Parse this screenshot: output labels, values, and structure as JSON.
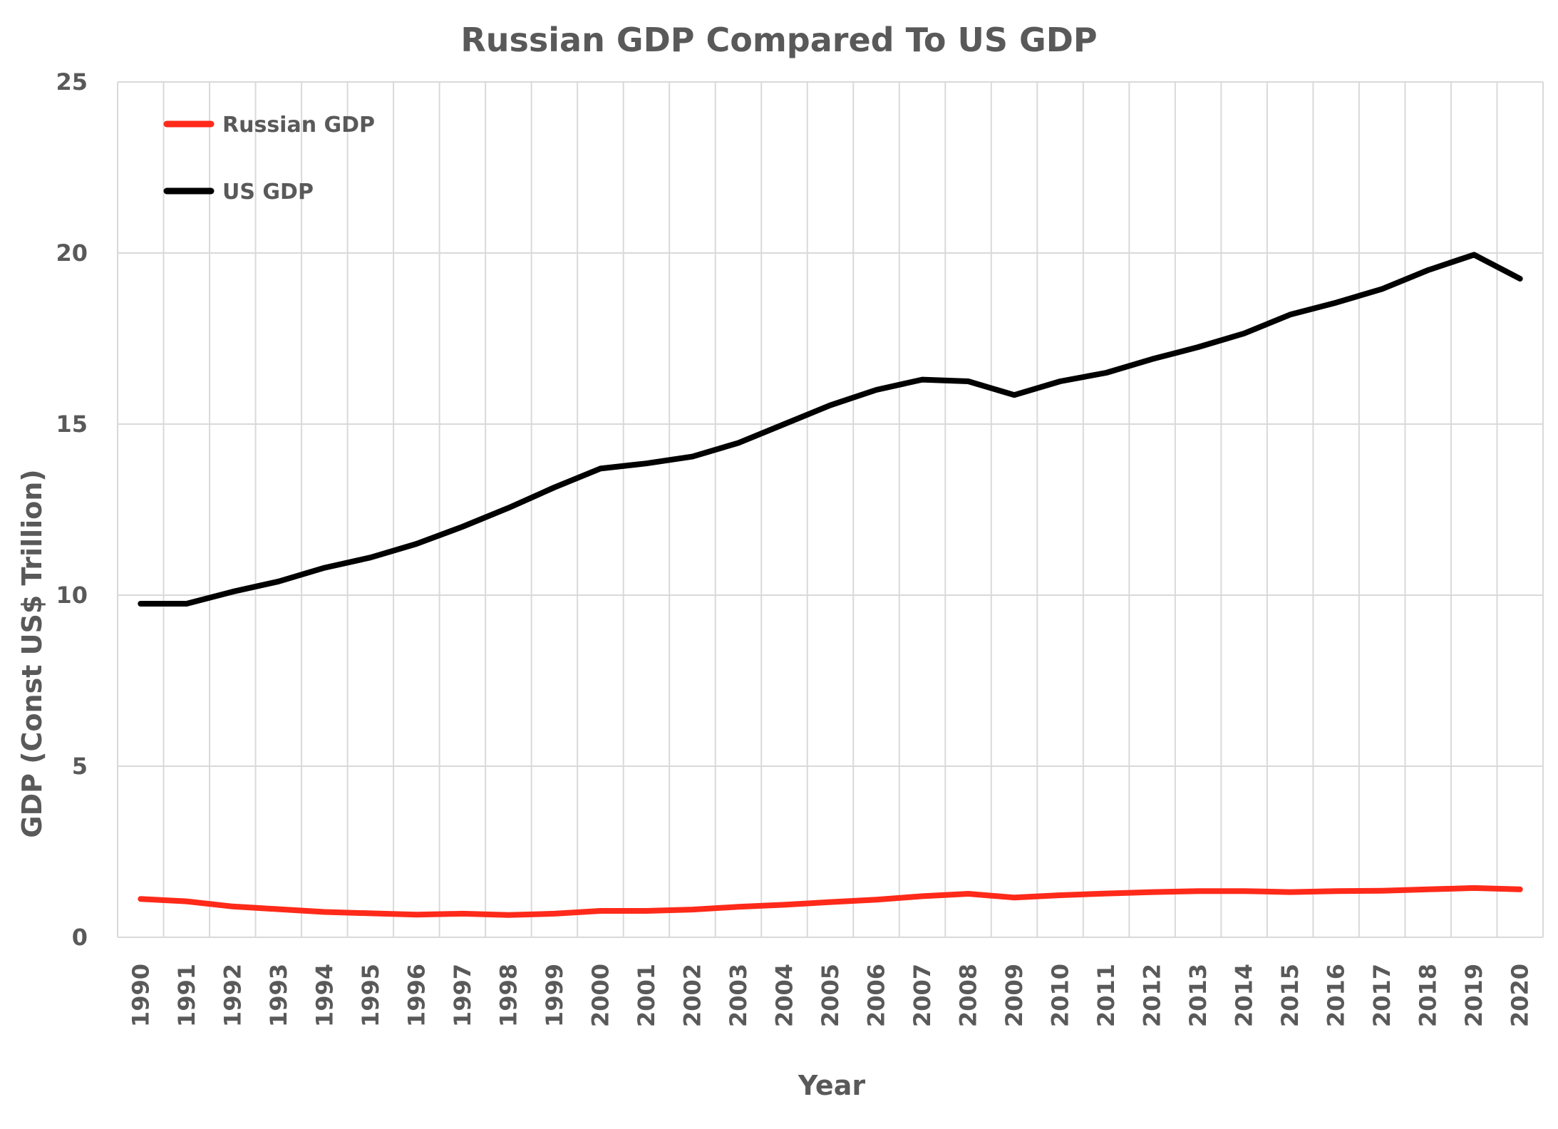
{
  "chart_data": {
    "type": "line",
    "title": "Russian GDP Compared To US GDP",
    "xlabel": "Year",
    "ylabel": "GDP (Const US$ Trillion)",
    "ylim": [
      0,
      25
    ],
    "yticks": [
      "0",
      "5",
      "10",
      "15",
      "20",
      "25"
    ],
    "grid": true,
    "legend_position": "top-left",
    "categories": [
      "1990",
      "1991",
      "1992",
      "1993",
      "1994",
      "1995",
      "1996",
      "1997",
      "1998",
      "1999",
      "2000",
      "2001",
      "2002",
      "2003",
      "2004",
      "2005",
      "2006",
      "2007",
      "2008",
      "2009",
      "2010",
      "2011",
      "2012",
      "2013",
      "2014",
      "2015",
      "2016",
      "2017",
      "2018",
      "2019",
      "2020"
    ],
    "series": [
      {
        "name": "Russian GDP",
        "color": "#ff2a1a",
        "values": [
          1.12,
          1.05,
          0.9,
          0.82,
          0.74,
          0.7,
          0.66,
          0.69,
          0.65,
          0.69,
          0.77,
          0.77,
          0.81,
          0.89,
          0.95,
          1.03,
          1.1,
          1.2,
          1.27,
          1.16,
          1.23,
          1.28,
          1.32,
          1.35,
          1.35,
          1.32,
          1.35,
          1.36,
          1.4,
          1.44,
          1.4
        ]
      },
      {
        "name": "US GDP",
        "color": "#000000",
        "values": [
          9.75,
          9.75,
          10.1,
          10.4,
          10.8,
          11.1,
          11.5,
          12.0,
          12.55,
          13.15,
          13.7,
          13.85,
          14.05,
          14.45,
          15.0,
          15.55,
          16.0,
          16.3,
          16.25,
          15.85,
          16.25,
          16.5,
          16.9,
          17.25,
          17.65,
          18.2,
          18.55,
          18.95,
          19.5,
          19.95,
          19.25
        ]
      }
    ]
  }
}
